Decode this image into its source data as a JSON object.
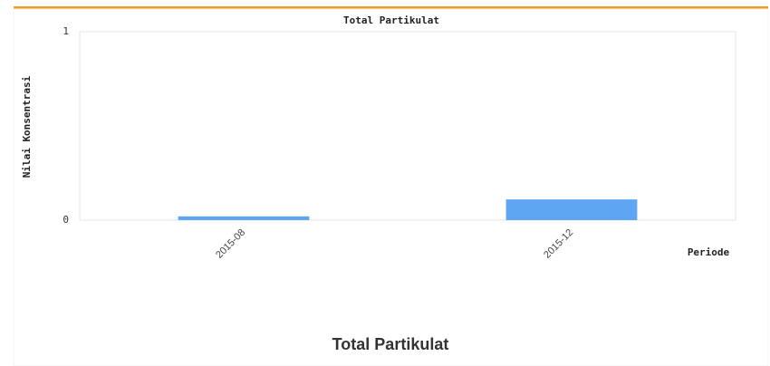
{
  "chart_data": {
    "type": "bar",
    "title": "Total Partikulat",
    "y_label": "Nilai Konsentrasi",
    "x_label": "Periode",
    "categories": [
      "2015-08",
      "2015-12"
    ],
    "values": [
      0.02,
      0.11
    ],
    "color": "#5ea6f2",
    "ylim": [
      0,
      1
    ],
    "yticks": [
      0,
      1
    ],
    "grid": true,
    "caption": "Total Partikulat"
  }
}
